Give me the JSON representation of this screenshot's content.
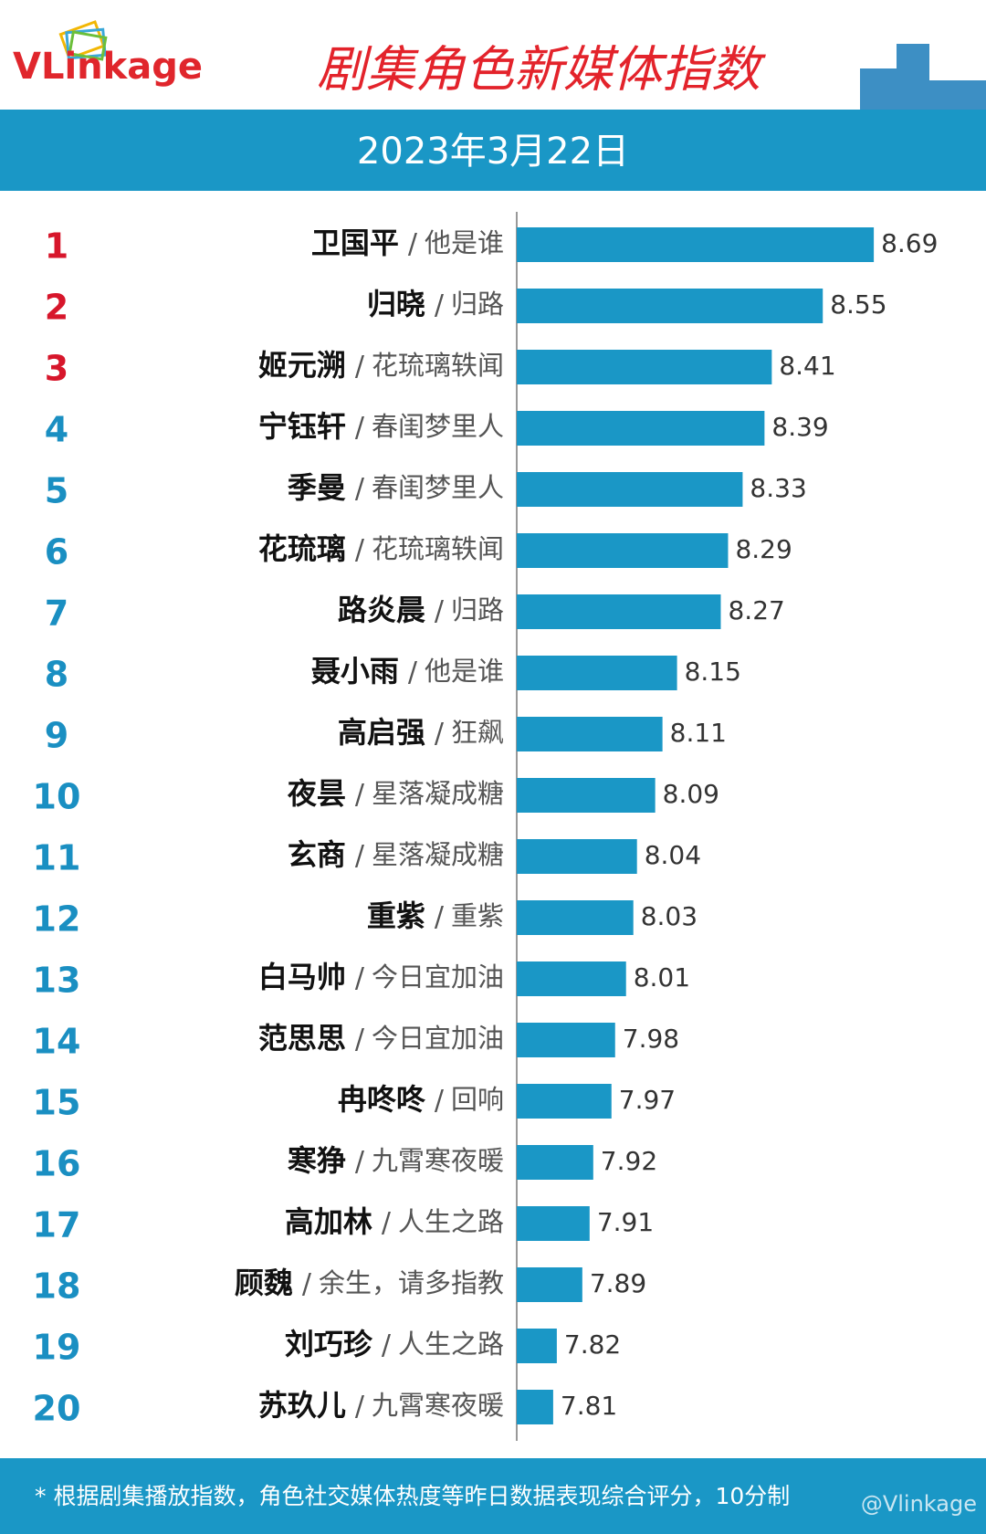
{
  "chart_data": {
    "type": "bar",
    "logo": "VLinkage",
    "title": "剧集角色新媒体指数",
    "subtitle": "2023年3月22日",
    "ranks": [
      1,
      2,
      3,
      4,
      5,
      6,
      7,
      8,
      9,
      10,
      11,
      12,
      13,
      14,
      15,
      16,
      17,
      18,
      19,
      20
    ],
    "rank_colors": [
      "#d7162b",
      "#d7162b",
      "#d7162b",
      "#1a8fc2",
      "#1a8fc2",
      "#1a8fc2",
      "#1a8fc2",
      "#1a8fc2",
      "#1a8fc2",
      "#1a8fc2",
      "#1a8fc2",
      "#1a8fc2",
      "#1a8fc2",
      "#1a8fc2",
      "#1a8fc2",
      "#1a8fc2",
      "#1a8fc2",
      "#1a8fc2",
      "#1a8fc2",
      "#1a8fc2"
    ],
    "names": [
      "卫国平",
      "归晓",
      "姬元溯",
      "宁钰轩",
      "季曼",
      "花琉璃",
      "路炎晨",
      "聂小雨",
      "高启强",
      "夜昙",
      "玄商",
      "重紫",
      "白马帅",
      "范思思",
      "冉咚咚",
      "寒狰",
      "高加林",
      "顾魏",
      "刘巧珍",
      "苏玖儿"
    ],
    "separator": "/",
    "categories": [
      "他是谁",
      "归路",
      "花琉璃轶闻",
      "春闺梦里人",
      "春闺梦里人",
      "花琉璃轶闻",
      "归路",
      "他是谁",
      "狂飙",
      "星落凝成糖",
      "星落凝成糖",
      "重紫",
      "今日宜加油",
      "今日宜加油",
      "回响",
      "九霄寒夜暖",
      "人生之路",
      "余生，请多指教",
      "人生之路",
      "九霄寒夜暖"
    ],
    "values": [
      8.69,
      8.55,
      8.41,
      8.39,
      8.33,
      8.29,
      8.27,
      8.15,
      8.11,
      8.09,
      8.04,
      8.03,
      8.01,
      7.98,
      7.97,
      7.92,
      7.91,
      7.89,
      7.82,
      7.81
    ],
    "color": "#1a97c6",
    "xlim": [
      7.71,
      8.8
    ],
    "footnote": "* 根据剧集播放指数，角色社交媒体热度等昨日数据表现综合评分，10分制",
    "watermark": "@Vlinkage"
  }
}
